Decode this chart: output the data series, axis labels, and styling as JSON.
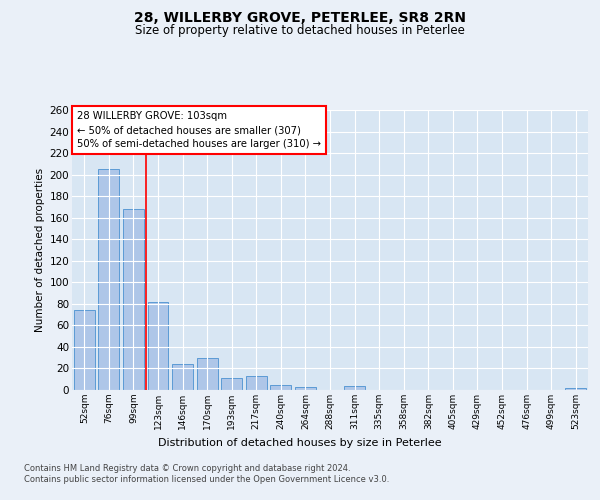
{
  "title1": "28, WILLERBY GROVE, PETERLEE, SR8 2RN",
  "title2": "Size of property relative to detached houses in Peterlee",
  "xlabel": "Distribution of detached houses by size in Peterlee",
  "ylabel": "Number of detached properties",
  "categories": [
    "52sqm",
    "76sqm",
    "99sqm",
    "123sqm",
    "146sqm",
    "170sqm",
    "193sqm",
    "217sqm",
    "240sqm",
    "264sqm",
    "288sqm",
    "311sqm",
    "335sqm",
    "358sqm",
    "382sqm",
    "405sqm",
    "429sqm",
    "452sqm",
    "476sqm",
    "499sqm",
    "523sqm"
  ],
  "values": [
    74,
    205,
    168,
    82,
    24,
    30,
    11,
    13,
    5,
    3,
    0,
    4,
    0,
    0,
    0,
    0,
    0,
    0,
    0,
    0,
    2
  ],
  "bar_color": "#aec6e8",
  "bar_edge_color": "#5b9bd5",
  "red_line_x": 2.5,
  "annotation_text": "28 WILLERBY GROVE: 103sqm\n← 50% of detached houses are smaller (307)\n50% of semi-detached houses are larger (310) →",
  "footer1": "Contains HM Land Registry data © Crown copyright and database right 2024.",
  "footer2": "Contains public sector information licensed under the Open Government Licence v3.0.",
  "bg_color": "#eaf0f8",
  "plot_bg_color": "#d8e6f3",
  "grid_color": "#ffffff",
  "ylim": [
    0,
    260
  ],
  "yticks": [
    0,
    20,
    40,
    60,
    80,
    100,
    120,
    140,
    160,
    180,
    200,
    220,
    240,
    260
  ]
}
